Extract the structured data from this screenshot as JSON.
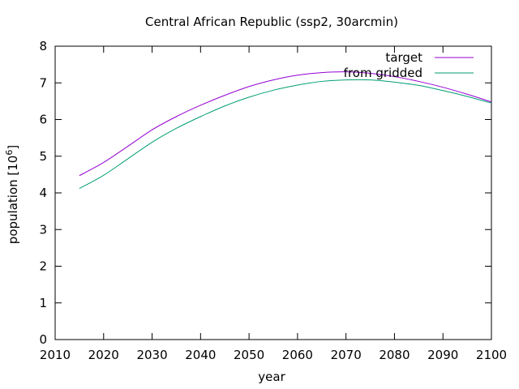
{
  "chart_data": {
    "type": "line",
    "title": "Central African Republic (ssp2, 30arcmin)",
    "xlabel": "year",
    "ylabel_text": "population [10",
    "ylabel_exponent": "6",
    "ylabel_close": "]",
    "xlim": [
      2010,
      2100
    ],
    "ylim": [
      0,
      8
    ],
    "x_ticks": [
      2010,
      2020,
      2030,
      2040,
      2050,
      2060,
      2070,
      2080,
      2090,
      2100
    ],
    "y_ticks": [
      0,
      1,
      2,
      3,
      4,
      5,
      6,
      7,
      8
    ],
    "grid": false,
    "legend_position": "top-right",
    "series": [
      {
        "name": "target",
        "color": "#9400d3",
        "x": [
          2015,
          2020,
          2025,
          2030,
          2035,
          2040,
          2045,
          2050,
          2055,
          2060,
          2065,
          2070,
          2075,
          2080,
          2085,
          2090,
          2095,
          2100
        ],
        "y": [
          4.47,
          4.83,
          5.27,
          5.72,
          6.08,
          6.39,
          6.66,
          6.9,
          7.08,
          7.21,
          7.28,
          7.3,
          7.26,
          7.17,
          7.04,
          6.88,
          6.69,
          6.48
        ]
      },
      {
        "name": "from gridded",
        "color": "#009e73",
        "x": [
          2015,
          2020,
          2025,
          2030,
          2035,
          2040,
          2045,
          2050,
          2055,
          2060,
          2065,
          2070,
          2075,
          2080,
          2085,
          2090,
          2095,
          2100
        ],
        "y": [
          4.12,
          4.48,
          4.93,
          5.38,
          5.76,
          6.08,
          6.37,
          6.61,
          6.8,
          6.94,
          7.04,
          7.08,
          7.08,
          7.02,
          6.93,
          6.79,
          6.63,
          6.45
        ]
      }
    ]
  }
}
